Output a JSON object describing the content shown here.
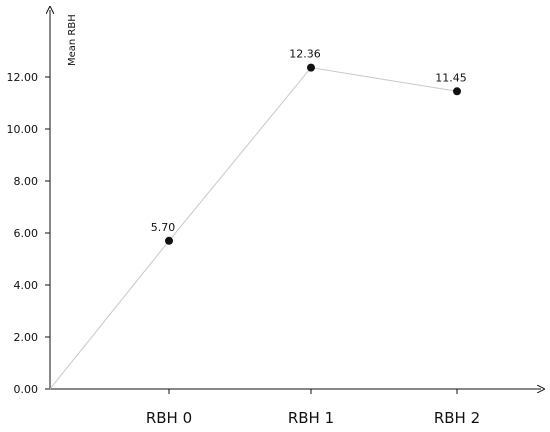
{
  "chart_data": {
    "type": "line",
    "categories": [
      "RBH 0",
      "RBH 1",
      "RBH 2"
    ],
    "x_origin": "0.00",
    "series": [
      {
        "values": [
          5.7,
          12.36,
          11.45
        ],
        "labels": [
          "5.70",
          "12.36",
          "11.45"
        ]
      }
    ],
    "ylabel": "Mean RBH",
    "xlabel": "",
    "title": "",
    "ylim": [
      0,
      14
    ],
    "yticks": [
      0,
      2,
      4,
      6,
      8,
      10,
      12
    ],
    "ytick_labels": [
      "0.00",
      "2.00",
      "4.00",
      "6.00",
      "8.00",
      "10.00",
      "12.00"
    ],
    "grid": false,
    "colors": {
      "line": "#c8c8c8",
      "marker": "#111111",
      "axis": "#111111"
    }
  }
}
